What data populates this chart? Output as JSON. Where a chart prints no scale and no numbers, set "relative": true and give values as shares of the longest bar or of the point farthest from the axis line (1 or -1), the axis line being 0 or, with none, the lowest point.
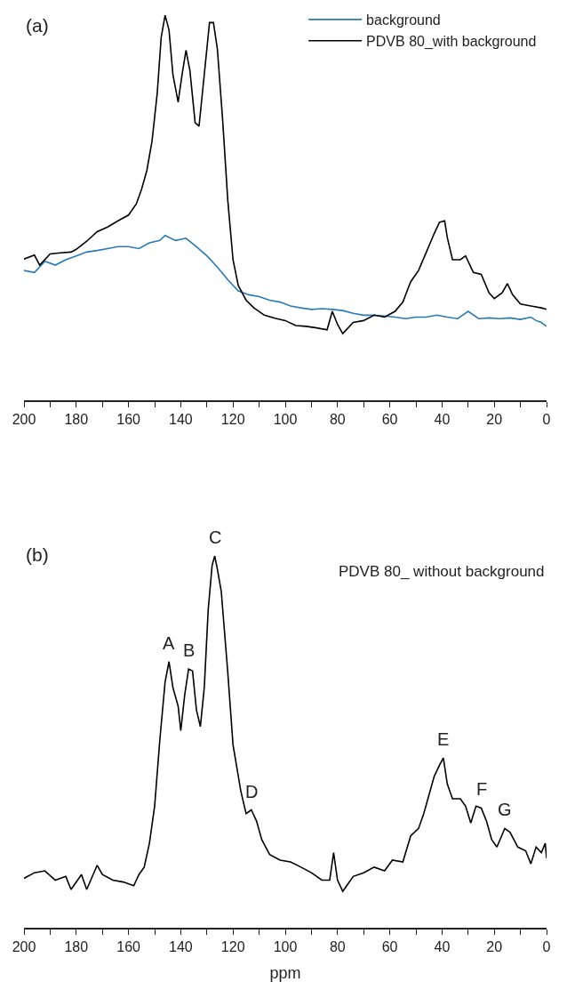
{
  "chart_data": [
    {
      "type": "line",
      "relative": true,
      "legend": "top right",
      "tick_labels": "x",
      "xlim": [
        200,
        0
      ],
      "xticks": [
        200,
        {
          "value": 190,
          "label": null
        },
        180,
        {
          "value": 170,
          "label": null
        },
        160,
        {
          "value": 150,
          "label": null
        },
        140,
        {
          "value": 130,
          "label": null
        },
        120,
        {
          "value": 110,
          "label": null
        },
        100,
        {
          "value": 90,
          "label": null
        },
        80,
        {
          "value": 70,
          "label": null
        },
        60,
        {
          "value": 50,
          "label": null
        },
        40,
        {
          "value": 30,
          "label": null
        },
        20,
        {
          "value": 10,
          "label": null
        },
        0
      ],
      "annotations": [
        "(a)"
      ],
      "series": [
        {
          "name": "background",
          "color": "#2a7ab8",
          "x": [
            200,
            196,
            192,
            188,
            184,
            180,
            176,
            172,
            168,
            164,
            160,
            156,
            152,
            148,
            146,
            142,
            138,
            134,
            130,
            126,
            122,
            118,
            114,
            110,
            106,
            102,
            98,
            94,
            90,
            86,
            82,
            78,
            74,
            70,
            66,
            62,
            58,
            54,
            50,
            46,
            42,
            38,
            34,
            30,
            26,
            22,
            18,
            14,
            10,
            6,
            4,
            2,
            0
          ],
          "values": [
            0.337,
            0.332,
            0.361,
            0.351,
            0.365,
            0.375,
            0.385,
            0.389,
            0.394,
            0.399,
            0.399,
            0.394,
            0.409,
            0.415,
            0.428,
            0.415,
            0.421,
            0.399,
            0.375,
            0.346,
            0.313,
            0.284,
            0.274,
            0.269,
            0.26,
            0.255,
            0.245,
            0.24,
            0.236,
            0.238,
            0.236,
            0.233,
            0.226,
            0.221,
            0.221,
            0.219,
            0.216,
            0.212,
            0.216,
            0.216,
            0.221,
            0.216,
            0.212,
            0.231,
            0.212,
            0.214,
            0.212,
            0.214,
            0.21,
            0.216,
            0.207,
            0.202,
            0.192
          ]
        },
        {
          "name": "PDVB 80_with background",
          "color": "#000000",
          "x": [
            200,
            196,
            194,
            190,
            186,
            182,
            180,
            176,
            172,
            168,
            164,
            160,
            157,
            155,
            153,
            151,
            149,
            147.5,
            146,
            144.5,
            143,
            141,
            139.5,
            138,
            136.5,
            134.5,
            133,
            131,
            129,
            127.5,
            126,
            124,
            122,
            120,
            118,
            115,
            112,
            108,
            104,
            100,
            96,
            92,
            88,
            84,
            82,
            80,
            78,
            74,
            70,
            66,
            62,
            58,
            55,
            52,
            49,
            46,
            43,
            41,
            39,
            38,
            36,
            33,
            31,
            28,
            25,
            22,
            20,
            17,
            15,
            13,
            10,
            6,
            2,
            0
          ],
          "values": [
            0.367,
            0.377,
            0.351,
            0.38,
            0.383,
            0.385,
            0.392,
            0.413,
            0.438,
            0.45,
            0.466,
            0.481,
            0.51,
            0.548,
            0.596,
            0.673,
            0.798,
            0.942,
            1.0,
            0.962,
            0.846,
            0.774,
            0.846,
            0.909,
            0.856,
            0.721,
            0.712,
            0.846,
            0.981,
            0.981,
            0.913,
            0.731,
            0.519,
            0.365,
            0.298,
            0.26,
            0.24,
            0.221,
            0.213,
            0.207,
            0.194,
            0.192,
            0.188,
            0.183,
            0.231,
            0.197,
            0.173,
            0.202,
            0.207,
            0.221,
            0.216,
            0.231,
            0.255,
            0.308,
            0.337,
            0.385,
            0.433,
            0.462,
            0.466,
            0.423,
            0.365,
            0.365,
            0.375,
            0.332,
            0.327,
            0.279,
            0.264,
            0.279,
            0.303,
            0.274,
            0.25,
            0.245,
            0.24,
            0.236
          ]
        }
      ]
    },
    {
      "type": "line",
      "relative": true,
      "tick_labels": "x",
      "xlabel": "ppm",
      "xlim": [
        200,
        0
      ],
      "xticks": [
        200,
        {
          "value": 190,
          "label": null
        },
        180,
        {
          "value": 170,
          "label": null
        },
        160,
        {
          "value": 150,
          "label": null
        },
        140,
        {
          "value": 130,
          "label": null
        },
        120,
        {
          "value": 110,
          "label": null
        },
        100,
        {
          "value": 90,
          "label": null
        },
        80,
        {
          "value": 70,
          "label": null
        },
        60,
        {
          "value": 50,
          "label": null
        },
        40,
        {
          "value": 30,
          "label": null
        },
        20,
        {
          "value": 10,
          "label": null
        },
        0
      ],
      "annotations": [
        "(b)",
        "PDVB 80_ without background",
        {
          "text": "A",
          "x": 144.5,
          "y": 0.716
        },
        {
          "text": "B",
          "x": 137,
          "y": 0.696
        },
        {
          "text": "C",
          "x": 127,
          "y": 1.0
        },
        {
          "text": "D",
          "x": 113,
          "y": 0.317
        },
        {
          "text": "E",
          "x": 39.5,
          "y": 0.457
        },
        {
          "text": "F",
          "x": 25,
          "y": 0.322
        },
        {
          "text": "G",
          "x": 16,
          "y": 0.267
        }
      ],
      "series": [
        {
          "color": "#000000",
          "x": [
            200,
            196,
            192,
            188,
            184,
            182,
            178,
            176,
            172,
            170,
            166,
            162,
            158,
            156,
            154,
            152,
            150,
            148,
            146,
            144.5,
            143,
            141,
            140,
            138.5,
            137,
            135.5,
            134,
            132.5,
            131,
            129.5,
            128,
            127,
            126,
            124.5,
            122,
            120,
            117,
            115,
            113,
            111,
            109,
            106,
            102,
            98,
            94,
            90,
            86,
            83,
            81.5,
            80,
            78,
            74,
            70,
            66,
            62,
            59,
            55,
            52,
            49,
            47,
            45,
            43,
            41,
            39.5,
            38,
            36,
            33,
            31,
            29,
            27,
            25,
            23,
            21,
            19,
            16,
            14,
            11,
            8,
            6,
            4,
            2,
            0.5,
            0
          ],
          "values": [
            0.133,
            0.148,
            0.153,
            0.128,
            0.138,
            0.103,
            0.143,
            0.103,
            0.168,
            0.143,
            0.128,
            0.123,
            0.113,
            0.143,
            0.163,
            0.227,
            0.327,
            0.506,
            0.661,
            0.716,
            0.646,
            0.596,
            0.53,
            0.626,
            0.696,
            0.691,
            0.586,
            0.541,
            0.646,
            0.855,
            0.975,
            1.0,
            0.965,
            0.905,
            0.686,
            0.492,
            0.367,
            0.307,
            0.317,
            0.287,
            0.237,
            0.197,
            0.182,
            0.177,
            0.163,
            0.148,
            0.128,
            0.128,
            0.202,
            0.128,
            0.098,
            0.138,
            0.148,
            0.163,
            0.153,
            0.182,
            0.177,
            0.247,
            0.267,
            0.307,
            0.357,
            0.407,
            0.437,
            0.457,
            0.387,
            0.347,
            0.347,
            0.327,
            0.282,
            0.327,
            0.322,
            0.287,
            0.237,
            0.217,
            0.267,
            0.257,
            0.217,
            0.207,
            0.172,
            0.217,
            0.202,
            0.227,
            0.187
          ]
        }
      ]
    }
  ]
}
